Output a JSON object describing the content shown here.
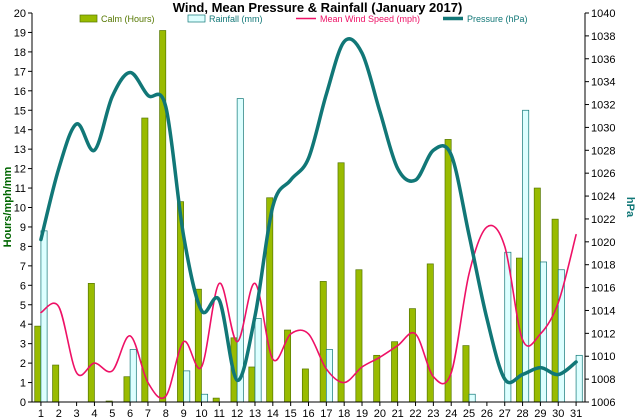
{
  "chart_data": {
    "type": "bar",
    "title": "Wind, Mean Pressure & Rainfall (January 2017)",
    "xlabel": "",
    "ylabel": "Hours/mph/mm",
    "ylabel_right": "hPa",
    "ylim": [
      0,
      20
    ],
    "ylim_right": [
      1006,
      1040
    ],
    "yticks": [
      0,
      1,
      2,
      3,
      4,
      5,
      6,
      7,
      8,
      9,
      10,
      11,
      12,
      13,
      14,
      15,
      16,
      17,
      18,
      19,
      20
    ],
    "yticks_right": [
      1006,
      1008,
      1010,
      1012,
      1014,
      1016,
      1018,
      1020,
      1022,
      1024,
      1026,
      1028,
      1030,
      1032,
      1034,
      1036,
      1038,
      1040
    ],
    "categories": [
      "1",
      "2",
      "3",
      "4",
      "5",
      "6",
      "7",
      "8",
      "9",
      "10",
      "11",
      "12",
      "13",
      "14",
      "15",
      "16",
      "17",
      "18",
      "19",
      "20",
      "21",
      "22",
      "23",
      "24",
      "25",
      "26",
      "27",
      "28",
      "29",
      "30",
      "31"
    ],
    "grid": false,
    "legend_position": "top",
    "series": [
      {
        "name": "Calm (Hours)",
        "type": "bar",
        "axis": "left",
        "color": "#99bb00",
        "values": [
          3.9,
          1.9,
          0,
          6.1,
          0.05,
          1.3,
          14.6,
          19.1,
          10.3,
          5.8,
          0.2,
          3.3,
          1.8,
          10.5,
          3.7,
          1.7,
          6.2,
          12.3,
          6.8,
          2.4,
          3.1,
          4.8,
          7.1,
          13.5,
          2.9,
          0,
          0,
          7.4,
          11,
          9.4,
          0
        ]
      },
      {
        "name": "Rainfall (mm)",
        "type": "bar",
        "axis": "left",
        "color": "#ddffff",
        "values": [
          8.8,
          0,
          0,
          0,
          0,
          2.7,
          0,
          0,
          1.6,
          0.4,
          0,
          15.6,
          4.3,
          0,
          0,
          0,
          2.7,
          0,
          0,
          0,
          0,
          0,
          0,
          0,
          0.4,
          0,
          7.7,
          15,
          7.2,
          6.8,
          2.4
        ]
      },
      {
        "name": "Mean Wind Speed (mph)",
        "type": "line",
        "axis": "left",
        "color": "#ee1166",
        "values": [
          4.6,
          4.9,
          1.5,
          2,
          1.6,
          3.4,
          1,
          0.3,
          3.1,
          1.8,
          6.1,
          3.1,
          6.1,
          2.2,
          3.5,
          3.5,
          1.7,
          1,
          1.8,
          2.3,
          2.9,
          3.5,
          1.3,
          1.5,
          6.6,
          9,
          8,
          3.2,
          3.5,
          5.1,
          8.6
        ]
      },
      {
        "name": "Pressure (hPa)",
        "type": "line",
        "axis": "right",
        "color": "#117777",
        "values": [
          1020.2,
          1026.4,
          1030.3,
          1028,
          1032.7,
          1034.8,
          1032.8,
          1031.8,
          1020.5,
          1014,
          1014.9,
          1007.9,
          1013.5,
          1023.1,
          1025.4,
          1027.3,
          1032.9,
          1037.5,
          1036.5,
          1031.4,
          1026.4,
          1025.4,
          1028,
          1027.6,
          1020.6,
          1013.3,
          1008,
          1008.4,
          1009,
          1008.4,
          1009.5
        ]
      }
    ]
  }
}
